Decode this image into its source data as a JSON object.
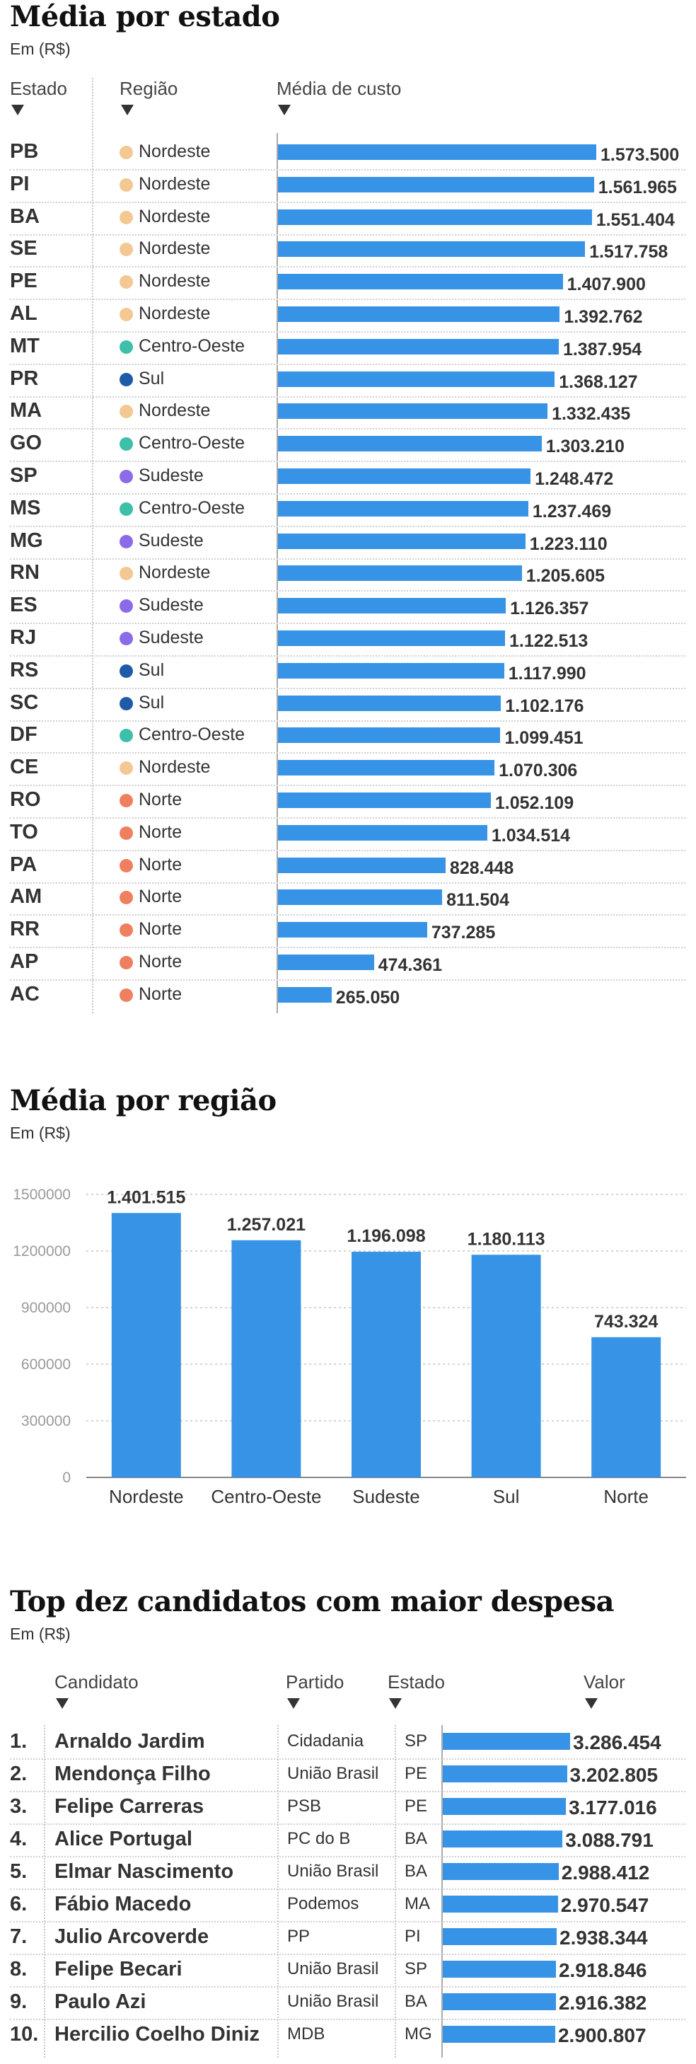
{
  "section1": {
    "title": "Média por estado",
    "subtitle": "Em (R$)",
    "col_estado": "Estado",
    "col_regiao": "Região",
    "col_media": "Média de custo"
  },
  "section2": {
    "title": "Média por região",
    "subtitle": "Em (R$)"
  },
  "section3": {
    "title": "Top dez candidatos com maior despesa",
    "subtitle": "Em (R$)",
    "col_candidato": "Candidato",
    "col_partido": "Partido",
    "col_estado": "Estado",
    "col_valor": "Valor"
  },
  "region_colors": {
    "Nordeste": "#f3c892",
    "Centro-Oeste": "#3dbfa8",
    "Sul": "#1e5aa8",
    "Sudeste": "#8c6be8",
    "Norte": "#ee8060"
  },
  "bar_color": "#3793e5",
  "chart_data": [
    {
      "type": "bar",
      "title": "Média por estado",
      "subtitle": "Em (R$)",
      "rows": [
        {
          "uf": "PB",
          "region": "Nordeste",
          "value": 1573500,
          "label": "1.573.500"
        },
        {
          "uf": "PI",
          "region": "Nordeste",
          "value": 1561965,
          "label": "1.561.965"
        },
        {
          "uf": "BA",
          "region": "Nordeste",
          "value": 1551404,
          "label": "1.551.404"
        },
        {
          "uf": "SE",
          "region": "Nordeste",
          "value": 1517758,
          "label": "1.517.758"
        },
        {
          "uf": "PE",
          "region": "Nordeste",
          "value": 1407900,
          "label": "1.407.900"
        },
        {
          "uf": "AL",
          "region": "Nordeste",
          "value": 1392762,
          "label": "1.392.762"
        },
        {
          "uf": "MT",
          "region": "Centro-Oeste",
          "value": 1387954,
          "label": "1.387.954"
        },
        {
          "uf": "PR",
          "region": "Sul",
          "value": 1368127,
          "label": "1.368.127"
        },
        {
          "uf": "MA",
          "region": "Nordeste",
          "value": 1332435,
          "label": "1.332.435"
        },
        {
          "uf": "GO",
          "region": "Centro-Oeste",
          "value": 1303210,
          "label": "1.303.210"
        },
        {
          "uf": "SP",
          "region": "Sudeste",
          "value": 1248472,
          "label": "1.248.472"
        },
        {
          "uf": "MS",
          "region": "Centro-Oeste",
          "value": 1237469,
          "label": "1.237.469"
        },
        {
          "uf": "MG",
          "region": "Sudeste",
          "value": 1223110,
          "label": "1.223.110"
        },
        {
          "uf": "RN",
          "region": "Nordeste",
          "value": 1205605,
          "label": "1.205.605"
        },
        {
          "uf": "ES",
          "region": "Sudeste",
          "value": 1126357,
          "label": "1.126.357"
        },
        {
          "uf": "RJ",
          "region": "Sudeste",
          "value": 1122513,
          "label": "1.122.513"
        },
        {
          "uf": "RS",
          "region": "Sul",
          "value": 1117990,
          "label": "1.117.990"
        },
        {
          "uf": "SC",
          "region": "Sul",
          "value": 1102176,
          "label": "1.102.176"
        },
        {
          "uf": "DF",
          "region": "Centro-Oeste",
          "value": 1099451,
          "label": "1.099.451"
        },
        {
          "uf": "CE",
          "region": "Nordeste",
          "value": 1070306,
          "label": "1.070.306"
        },
        {
          "uf": "RO",
          "region": "Norte",
          "value": 1052109,
          "label": "1.052.109"
        },
        {
          "uf": "TO",
          "region": "Norte",
          "value": 1034514,
          "label": "1.034.514"
        },
        {
          "uf": "PA",
          "region": "Norte",
          "value": 828448,
          "label": "828.448"
        },
        {
          "uf": "AM",
          "region": "Norte",
          "value": 811504,
          "label": "811.504"
        },
        {
          "uf": "RR",
          "region": "Norte",
          "value": 737285,
          "label": "737.285"
        },
        {
          "uf": "AP",
          "region": "Norte",
          "value": 474361,
          "label": "474.361"
        },
        {
          "uf": "AC",
          "region": "Norte",
          "value": 265050,
          "label": "265.050"
        }
      ]
    },
    {
      "type": "bar",
      "title": "Média por região",
      "subtitle": "Em (R$)",
      "categories": [
        "Nordeste",
        "Centro-Oeste",
        "Sudeste",
        "Sul",
        "Norte"
      ],
      "values": [
        1401515,
        1257021,
        1196098,
        1180113,
        743324
      ],
      "value_labels": [
        "1.401.515",
        "1.257.021",
        "1.196.098",
        "1.180.113",
        "743.324"
      ],
      "yticks": [
        0,
        300000,
        600000,
        900000,
        1200000,
        1500000
      ],
      "ylim": [
        0,
        1500000
      ],
      "grid": true
    },
    {
      "type": "bar",
      "title": "Top dez candidatos com maior despesa",
      "subtitle": "Em (R$)",
      "rows": [
        {
          "rank": "1.",
          "name": "Arnaldo Jardim",
          "party": "Cidadania",
          "uf": "SP",
          "value": 3286454,
          "label": "3.286.454"
        },
        {
          "rank": "2.",
          "name": "Mendonça Filho",
          "party": "União Brasil",
          "uf": "PE",
          "value": 3202805,
          "label": "3.202.805"
        },
        {
          "rank": "3.",
          "name": "Felipe Carreras",
          "party": "PSB",
          "uf": "PE",
          "value": 3177016,
          "label": "3.177.016"
        },
        {
          "rank": "4.",
          "name": "Alice Portugal",
          "party": "PC do B",
          "uf": "BA",
          "value": 3088791,
          "label": "3.088.791"
        },
        {
          "rank": "5.",
          "name": "Elmar Nascimento",
          "party": "União Brasil",
          "uf": "BA",
          "value": 2988412,
          "label": "2.988.412"
        },
        {
          "rank": "6.",
          "name": "Fábio Macedo",
          "party": "Podemos",
          "uf": "MA",
          "value": 2970547,
          "label": "2.970.547"
        },
        {
          "rank": "7.",
          "name": "Julio Arcoverde",
          "party": "PP",
          "uf": "PI",
          "value": 2938344,
          "label": "2.938.344"
        },
        {
          "rank": "8.",
          "name": "Felipe Becari",
          "party": "União Brasil",
          "uf": "SP",
          "value": 2918846,
          "label": "2.918.846"
        },
        {
          "rank": "9.",
          "name": "Paulo Azi",
          "party": "União Brasil",
          "uf": "BA",
          "value": 2916382,
          "label": "2.916.382"
        },
        {
          "rank": "10.",
          "name": "Hercilio Coelho Diniz",
          "party": "MDB",
          "uf": "MG",
          "value": 2900807,
          "label": "2.900.807"
        }
      ]
    }
  ]
}
